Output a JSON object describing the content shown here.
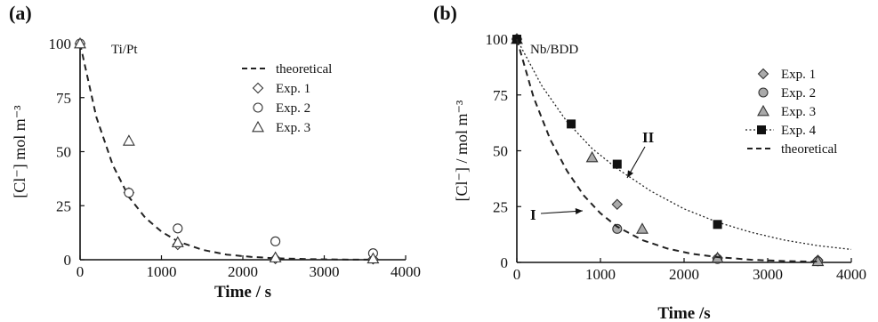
{
  "chart_data": [
    {
      "panel_label": "(a)",
      "type": "scatter",
      "annotation": "Ti/Pt",
      "xlabel": "Time / s",
      "ylabel": "[Cl⁻] mol m⁻³",
      "xlim": [
        0,
        4000
      ],
      "ylim": [
        0,
        100
      ],
      "xticks": [
        "0",
        "1000",
        "2000",
        "3000",
        "4000"
      ],
      "yticks": [
        "0",
        "25",
        "50",
        "75",
        "100"
      ],
      "legend_position": "top-right",
      "series": [
        {
          "name": "theoretical",
          "kind": "line",
          "style": "dashed",
          "x": [
            0,
            200,
            400,
            600,
            800,
            1000,
            1200,
            1500,
            1800,
            2100,
            2400,
            2800,
            3200,
            3600
          ],
          "y": [
            100,
            66,
            44,
            29,
            19.5,
            13,
            8.5,
            4.6,
            2.4,
            1.3,
            0.7,
            0.3,
            0.1,
            0.05
          ]
        },
        {
          "name": "Exp. 1",
          "kind": "points",
          "marker": "diamond",
          "x": [
            0,
            600,
            1200,
            2400,
            3600
          ],
          "y": [
            100,
            31,
            7,
            0.5,
            0.3
          ]
        },
        {
          "name": "Exp. 2",
          "kind": "points",
          "marker": "circle",
          "x": [
            0,
            600,
            1200,
            2400,
            3600
          ],
          "y": [
            100,
            31,
            14.5,
            8.5,
            3
          ]
        },
        {
          "name": "Exp. 3",
          "kind": "points",
          "marker": "triangle",
          "x": [
            0,
            600,
            1200,
            2400,
            3600
          ],
          "y": [
            100,
            55,
            8,
            1,
            0.5
          ]
        }
      ]
    },
    {
      "panel_label": "(b)",
      "type": "scatter",
      "annotation": "Nb/BDD",
      "xlabel": "Time /s",
      "ylabel": "[Cl⁻] / mol m⁻³",
      "xlim": [
        0,
        4000
      ],
      "ylim": [
        0,
        100
      ],
      "xticks": [
        "0",
        "1000",
        "2000",
        "3000",
        "4000"
      ],
      "yticks": [
        "0",
        "25",
        "50",
        "75",
        "100"
      ],
      "legend_position": "right",
      "curve_labels": [
        {
          "text": "I",
          "series": "theoretical"
        },
        {
          "text": "II",
          "series": "Exp. 4"
        }
      ],
      "series": [
        {
          "name": "Exp. 1",
          "kind": "points",
          "marker": "diamond-filled",
          "x": [
            0,
            1200,
            2400,
            3600
          ],
          "y": [
            100,
            26,
            2,
            1
          ]
        },
        {
          "name": "Exp. 2",
          "kind": "points",
          "marker": "circle-filled",
          "x": [
            0,
            1200,
            2400,
            3600
          ],
          "y": [
            100,
            15,
            1.5,
            0.5
          ]
        },
        {
          "name": "Exp. 3",
          "kind": "points",
          "marker": "triangle-filled",
          "x": [
            0,
            900,
            1500,
            2400,
            3600
          ],
          "y": [
            100,
            47,
            15,
            2,
            0.5
          ]
        },
        {
          "name": "Exp. 4",
          "kind": "points+line",
          "marker": "square-filled",
          "style": "dotted",
          "x": [
            0,
            650,
            1200,
            2400
          ],
          "y": [
            100,
            62,
            44,
            17
          ],
          "line_x": [
            0,
            300,
            600,
            900,
            1200,
            1600,
            2000,
            2400,
            2800,
            3200,
            3600,
            4000
          ],
          "line_y": [
            100,
            79,
            63,
            51,
            42,
            32,
            24,
            18,
            13.5,
            10,
            7.5,
            5.8
          ]
        },
        {
          "name": "theoretical",
          "kind": "line",
          "style": "dashed",
          "x": [
            0,
            200,
            400,
            600,
            800,
            1000,
            1200,
            1500,
            1800,
            2100,
            2400,
            2800,
            3200,
            3600
          ],
          "y": [
            100,
            74,
            55,
            41,
            30,
            22,
            16,
            10,
            6.2,
            3.8,
            2.4,
            1.2,
            0.6,
            0.3
          ]
        }
      ]
    }
  ]
}
